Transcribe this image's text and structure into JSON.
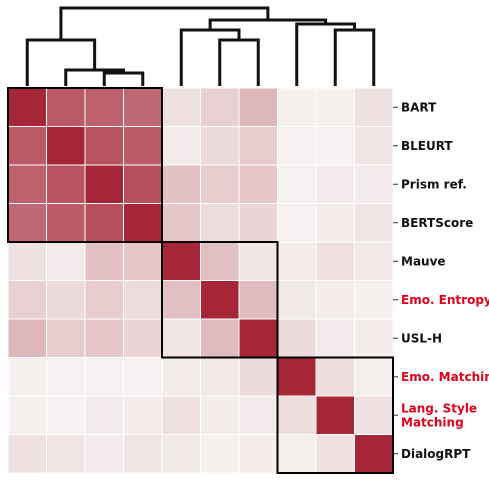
{
  "chart_data": {
    "type": "heatmap",
    "title": "",
    "xlabel": "",
    "ylabel": "",
    "rows": [
      "BART",
      "BLEURT",
      "Prism ref.",
      "BERTScore",
      "Mauve",
      "Emo. Entropy",
      "USL-H",
      "Emo. Matching",
      "Lang. Style Matching",
      "DialogRPT"
    ],
    "row_label_lines": [
      [
        "BART"
      ],
      [
        "BLEURT"
      ],
      [
        "Prism ref."
      ],
      [
        "BERTScore"
      ],
      [
        "Mauve"
      ],
      [
        "Emo. Entropy"
      ],
      [
        "USL-H"
      ],
      [
        "Emo. Matching"
      ],
      [
        "Lang. Style",
        "Matching"
      ],
      [
        "DialogRPT"
      ]
    ],
    "highlighted_rows": [
      "Emo. Entropy",
      "Emo. Matching",
      "Lang. Style Matching"
    ],
    "values": [
      [
        1.0,
        0.75,
        0.72,
        0.68,
        0.1,
        0.18,
        0.3,
        0.03,
        0.03,
        0.1
      ],
      [
        0.75,
        1.0,
        0.78,
        0.74,
        0.05,
        0.13,
        0.2,
        0.02,
        0.02,
        0.08
      ],
      [
        0.72,
        0.78,
        1.0,
        0.8,
        0.25,
        0.2,
        0.22,
        0.02,
        0.05,
        0.05
      ],
      [
        0.68,
        0.74,
        0.8,
        1.0,
        0.22,
        0.12,
        0.16,
        0.02,
        0.04,
        0.08
      ],
      [
        0.1,
        0.05,
        0.25,
        0.22,
        1.0,
        0.26,
        0.08,
        0.04,
        0.1,
        0.06
      ],
      [
        0.18,
        0.13,
        0.2,
        0.12,
        0.26,
        1.0,
        0.28,
        0.06,
        0.04,
        0.03
      ],
      [
        0.3,
        0.2,
        0.22,
        0.16,
        0.08,
        0.28,
        1.0,
        0.13,
        0.05,
        0.04
      ],
      [
        0.03,
        0.02,
        0.02,
        0.02,
        0.04,
        0.06,
        0.13,
        1.0,
        0.12,
        0.03
      ],
      [
        0.03,
        0.02,
        0.05,
        0.04,
        0.1,
        0.04,
        0.05,
        0.12,
        1.0,
        0.1
      ],
      [
        0.1,
        0.08,
        0.05,
        0.08,
        0.06,
        0.03,
        0.04,
        0.03,
        0.1,
        1.0
      ]
    ],
    "clusters": [
      [
        "BART",
        "BLEURT",
        "Prism ref.",
        "BERTScore"
      ],
      [
        "Mauve",
        "Emo. Entropy",
        "USL-H"
      ],
      [
        "Emo. Matching",
        "Lang. Style Matching",
        "DialogRPT"
      ]
    ],
    "dendrogram": "top",
    "colors": {
      "low": "#f7f5f4",
      "high": "#a52636",
      "label": "#111111",
      "highlight_label": "#e0001a",
      "cell_border": "#ffffff",
      "cluster_box": "#000000",
      "dendrogram_line": "#111111"
    }
  }
}
